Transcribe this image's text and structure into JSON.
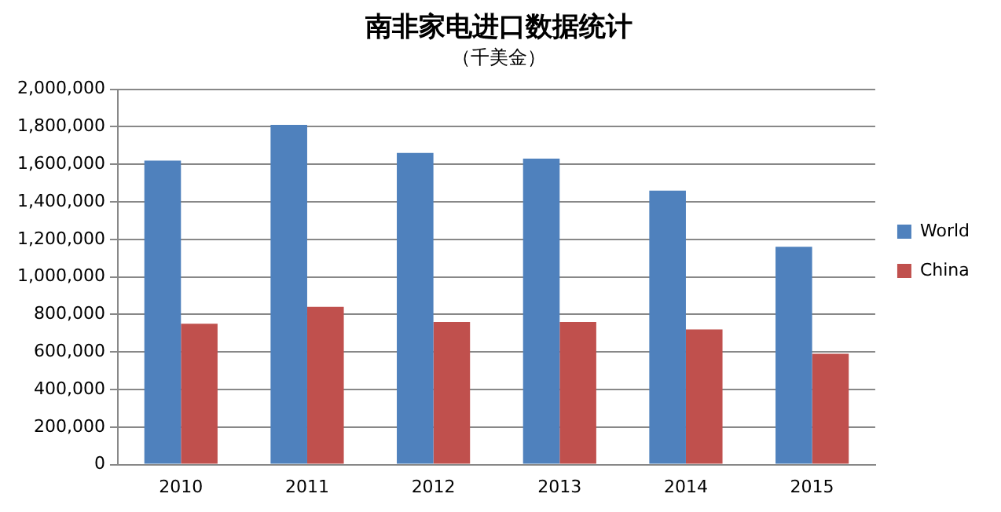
{
  "chart_data": {
    "type": "bar",
    "title": "南非家电进口数据统计",
    "subtitle": "（千美金）",
    "categories": [
      "2010",
      "2011",
      "2012",
      "2013",
      "2014",
      "2015"
    ],
    "series": [
      {
        "name": "World",
        "color": "#4f81bd",
        "values": [
          1620000,
          1810000,
          1660000,
          1630000,
          1460000,
          1160000
        ]
      },
      {
        "name": "China",
        "color": "#c0504d",
        "values": [
          750000,
          840000,
          760000,
          760000,
          720000,
          590000
        ]
      }
    ],
    "ylim": [
      0,
      2000000
    ],
    "yticks": [
      0,
      {
        "value": 200000,
        "label": "200,000"
      },
      {
        "value": 400000,
        "label": "400,000"
      },
      {
        "value": 600000,
        "label": "600,000"
      },
      {
        "value": 800000,
        "label": "800,000"
      },
      {
        "value": 1000000,
        "label": "1,000,000"
      },
      {
        "value": 1200000,
        "label": "1,200,000"
      },
      {
        "value": 1400000,
        "label": "1,400,000"
      },
      {
        "value": 1600000,
        "label": "1,600,000"
      },
      {
        "value": 1800000,
        "label": "1,800,000"
      },
      {
        "value": 2000000,
        "label": "2,000,000"
      }
    ],
    "grid": "y",
    "legend": "right"
  }
}
